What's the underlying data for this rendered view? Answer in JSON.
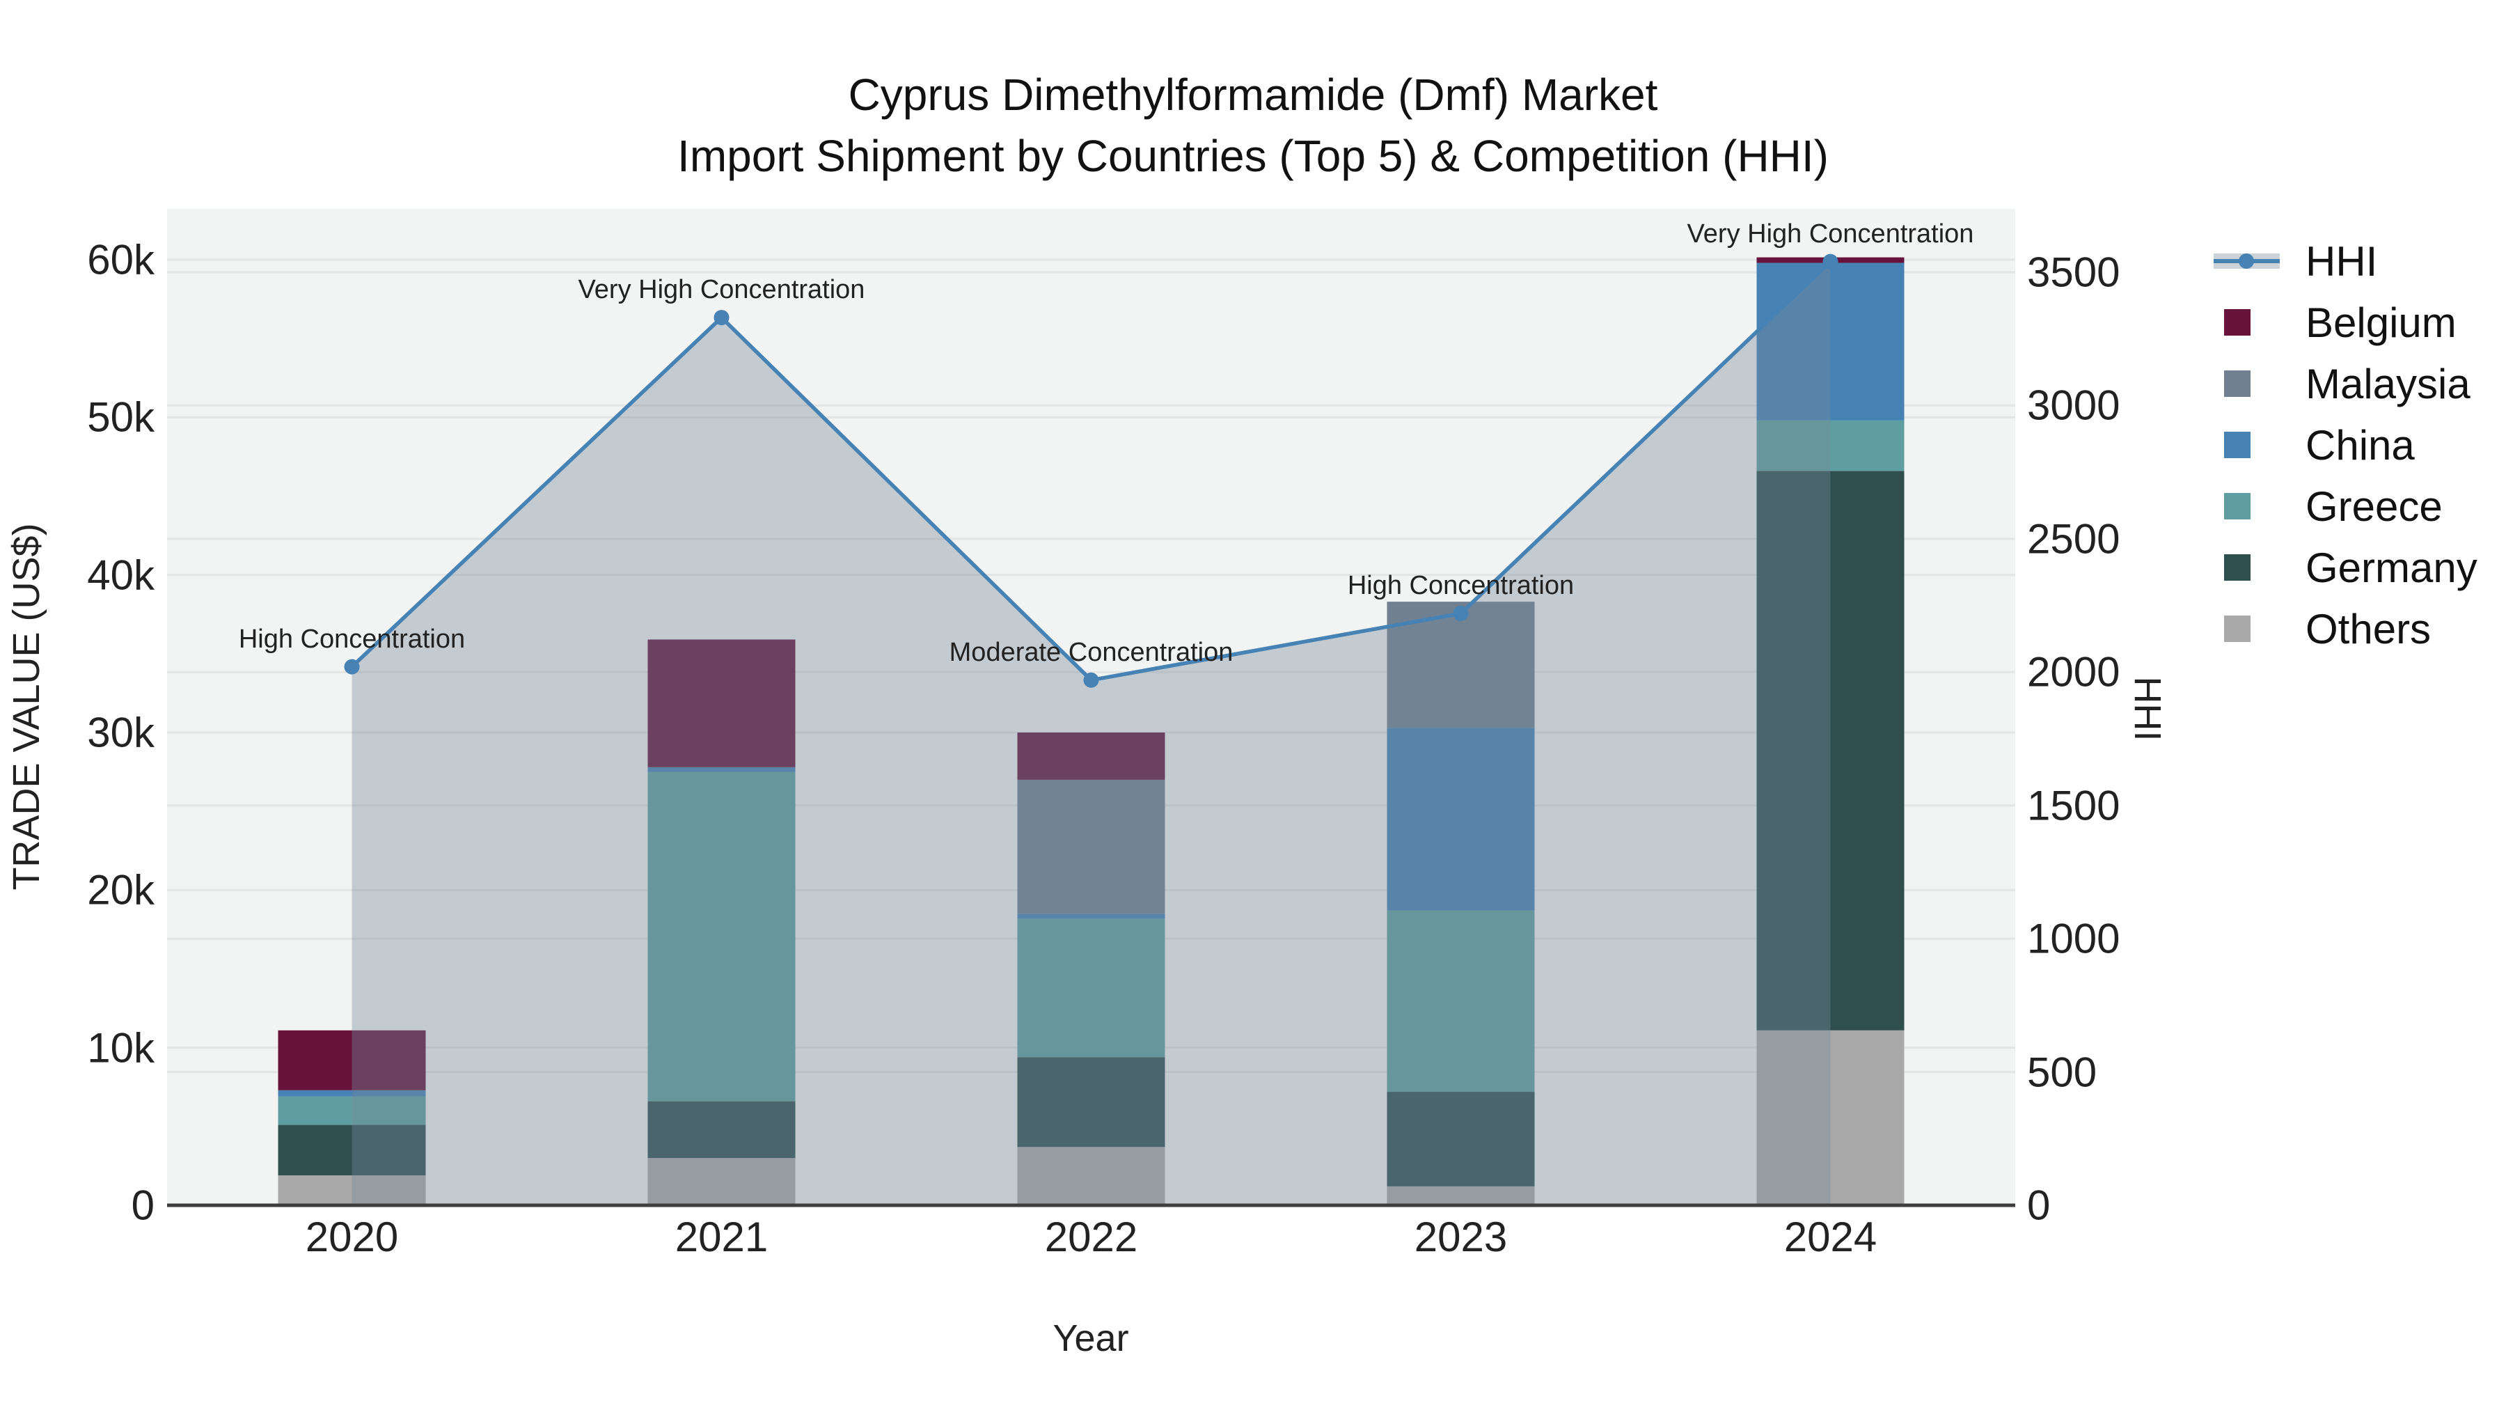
{
  "title": {
    "line1": "Cyprus Dimethylformamide (Dmf) Market",
    "line2": "Import Shipment by Countries (Top 5) & Competition (HHI)"
  },
  "axes": {
    "x": {
      "title": "Year",
      "tick_labels": [
        "2020",
        "2021",
        "2022",
        "2023",
        "2024"
      ]
    },
    "y_left": {
      "title": "TRADE VALUE (US$)",
      "tick_labels": [
        "0",
        "10k",
        "20k",
        "30k",
        "40k",
        "50k",
        "60k"
      ],
      "tick_values": [
        0,
        10000,
        20000,
        30000,
        40000,
        50000,
        60000
      ],
      "range": [
        0,
        60000
      ]
    },
    "y_right": {
      "title": "HHI",
      "tick_labels": [
        "0",
        "500",
        "1000",
        "1500",
        "2000",
        "2500",
        "3000",
        "3500"
      ],
      "tick_values": [
        0,
        500,
        1000,
        1500,
        2000,
        2500,
        3000,
        3500
      ],
      "range": [
        0,
        3500
      ]
    }
  },
  "legend": {
    "items": [
      {
        "label": "HHI",
        "type": "line"
      },
      {
        "label": "Belgium",
        "type": "square"
      },
      {
        "label": "Malaysia",
        "type": "square"
      },
      {
        "label": "China",
        "type": "square"
      },
      {
        "label": "Greece",
        "type": "square"
      },
      {
        "label": "Germany",
        "type": "square"
      },
      {
        "label": "Others",
        "type": "square"
      }
    ]
  },
  "chart_data": {
    "type": "bar+line",
    "title": "Cyprus Dimethylformamide (Dmf) Market Import Shipment by Countries (Top 5) & Competition (HHI)",
    "categories": [
      "2020",
      "2021",
      "2022",
      "2023",
      "2024"
    ],
    "xlabel": "Year",
    "ylabel_left": "TRADE VALUE (US$)",
    "ylabel_right": "HHI",
    "ylim_left": [
      0,
      60000
    ],
    "ylim_right": [
      0,
      3500
    ],
    "grid": true,
    "legend_position": "right",
    "bar_stack_order_bottom_to_top": [
      "Others",
      "Germany",
      "Greece",
      "China",
      "Malaysia",
      "Belgium"
    ],
    "series": [
      {
        "name": "Belgium",
        "color": "#67143C",
        "values": [
          3800,
          8100,
          3000,
          0,
          350
        ]
      },
      {
        "name": "Malaysia",
        "color": "#708090",
        "values": [
          0,
          0,
          8500,
          8000,
          0
        ]
      },
      {
        "name": "China",
        "color": "#4682B4",
        "values": [
          400,
          300,
          300,
          11600,
          10000
        ]
      },
      {
        "name": "Greece",
        "color": "#5F9EA0",
        "values": [
          1800,
          20900,
          8800,
          11500,
          3200
        ]
      },
      {
        "name": "Germany",
        "color": "#2F4F4F",
        "values": [
          3200,
          3600,
          5700,
          6000,
          35500
        ]
      },
      {
        "name": "Others",
        "color": "#A9A9A9",
        "values": [
          1900,
          3000,
          3700,
          1200,
          11100
        ]
      }
    ],
    "bar_totals": [
      11100,
      35900,
      30000,
      38300,
      60150
    ],
    "line_series": {
      "name": "HHI",
      "values": [
        2020,
        3330,
        1970,
        2220,
        3540
      ],
      "color": "#4682B4",
      "area_fill": "rgba(119,136,153,0.38)"
    },
    "annotations": [
      {
        "category": "2020",
        "text": "High Concentration"
      },
      {
        "category": "2021",
        "text": "Very High Concentration"
      },
      {
        "category": "2022",
        "text": "Moderate Concentration"
      },
      {
        "category": "2023",
        "text": "High Concentration"
      },
      {
        "category": "2024",
        "text": "Very High Concentration"
      }
    ]
  },
  "style": {
    "plot_bg": "#F2F3F3",
    "grid_color": "#E4E5E5",
    "axis_line_color": "#3E3E3E",
    "hhi_legend_band": "#CBD2D8",
    "text_color": "#222222"
  }
}
